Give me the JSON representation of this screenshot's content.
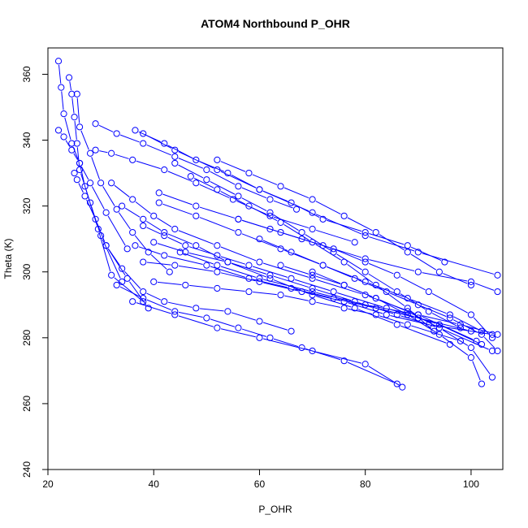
{
  "chart_data": {
    "type": "line",
    "title": "ATOM4 Northbound P_OHR",
    "xlabel": "P_OHR",
    "ylabel": "Theta (K)",
    "xlim": [
      20,
      106
    ],
    "ylim": [
      240,
      368
    ],
    "x_ticks": [
      20,
      40,
      60,
      80,
      100
    ],
    "y_ticks": [
      240,
      260,
      280,
      300,
      320,
      340,
      360
    ],
    "grid": false,
    "legend": "none",
    "marker": "open-circle",
    "color": "#0000ff",
    "series": [
      {
        "x": [
          22,
          22.5,
          23,
          24.5,
          26,
          28,
          31,
          35
        ],
        "y": [
          364,
          356,
          348,
          339,
          333,
          327,
          318,
          307
        ]
      },
      {
        "x": [
          22,
          23,
          24.5,
          26,
          27,
          29.5,
          32,
          38
        ],
        "y": [
          343,
          341,
          337,
          333,
          326,
          313,
          299,
          291
        ]
      },
      {
        "x": [
          24,
          24.5,
          25,
          25.5,
          26,
          28,
          30,
          34
        ],
        "y": [
          359,
          354,
          347,
          339,
          331,
          321,
          311,
          297
        ]
      },
      {
        "x": [
          25.5,
          26,
          28,
          30,
          33,
          36,
          39,
          43
        ],
        "y": [
          354,
          344,
          336,
          327,
          319,
          312,
          306,
          300
        ]
      },
      {
        "x": [
          25,
          25.5,
          27,
          29,
          31,
          35,
          39
        ],
        "y": [
          330,
          328,
          323,
          316,
          308,
          298,
          289
        ]
      },
      {
        "x": [
          29,
          33,
          38,
          44,
          50,
          56,
          62,
          67
        ],
        "y": [
          345,
          342,
          339,
          335,
          331,
          326,
          322,
          319
        ]
      },
      {
        "x": [
          29,
          32,
          36,
          42,
          48,
          55,
          62,
          70,
          78
        ],
        "y": [
          337,
          336,
          334,
          331,
          327,
          322,
          317,
          313,
          309
        ]
      },
      {
        "x": [
          36.5,
          42,
          48,
          54,
          60,
          66,
          72,
          80,
          88,
          95
        ],
        "y": [
          343,
          339,
          334,
          330,
          325,
          321,
          316,
          312,
          308,
          303
        ]
      },
      {
        "x": [
          38,
          44,
          52,
          60,
          70,
          80,
          90,
          105
        ],
        "y": [
          342,
          337,
          331,
          325,
          318,
          311,
          306,
          299
        ]
      },
      {
        "x": [
          41,
          48,
          56,
          64,
          72,
          80,
          90,
          100,
          105
        ],
        "y": [
          324,
          320,
          316,
          312,
          308,
          304,
          300,
          297,
          294
        ]
      },
      {
        "x": [
          36.5,
          42,
          50,
          58,
          66,
          74,
          82,
          90,
          100
        ],
        "y": [
          308,
          305,
          302,
          298,
          295,
          292,
          289,
          286,
          282
        ]
      },
      {
        "x": [
          38,
          44,
          52,
          60,
          68,
          76,
          84,
          92,
          104
        ],
        "y": [
          303,
          302,
          300,
          297,
          294,
          291,
          287,
          284,
          281
        ]
      },
      {
        "x": [
          40,
          46,
          54,
          62,
          70,
          78,
          86,
          94,
          104
        ],
        "y": [
          309,
          306,
          303,
          299,
          295,
          291,
          287,
          283,
          276
        ]
      },
      {
        "x": [
          41,
          48,
          56,
          64,
          72,
          80,
          88,
          96,
          102
        ],
        "y": [
          321,
          317,
          312,
          307,
          302,
          297,
          292,
          287,
          282
        ]
      },
      {
        "x": [
          32,
          36,
          40,
          44,
          52,
          60,
          70,
          80,
          90,
          101
        ],
        "y": [
          327,
          322,
          317,
          313,
          308,
          303,
          298,
          293,
          287,
          279
        ]
      },
      {
        "x": [
          38,
          42,
          46,
          52,
          58,
          66,
          74,
          84,
          94,
          102
        ],
        "y": [
          314,
          311,
          308,
          305,
          302,
          298,
          294,
          289,
          284,
          278
        ]
      },
      {
        "x": [
          45,
          52,
          60,
          70,
          80,
          90,
          98,
          105
        ],
        "y": [
          306,
          302,
          298,
          294,
          290,
          287,
          284,
          281
        ]
      },
      {
        "x": [
          34,
          38,
          42,
          48,
          54,
          62,
          70,
          78,
          86,
          96
        ],
        "y": [
          320,
          316,
          312,
          308,
          303,
          298,
          293,
          289,
          284,
          278
        ]
      },
      {
        "x": [
          40,
          46,
          52,
          58,
          64,
          70,
          76,
          82,
          88,
          98
        ],
        "y": [
          297,
          296,
          295,
          294,
          293,
          291,
          289,
          287,
          284,
          279
        ]
      },
      {
        "x": [
          31,
          34,
          38,
          42,
          48,
          54,
          60,
          66
        ],
        "y": [
          308,
          301,
          294,
          291,
          289,
          288,
          285,
          282
        ]
      },
      {
        "x": [
          33,
          38,
          44,
          50,
          56,
          62,
          68,
          76,
          86
        ],
        "y": [
          296,
          292,
          288,
          286,
          283,
          280,
          277,
          273,
          266
        ]
      },
      {
        "x": [
          36,
          44,
          52,
          60,
          70,
          80,
          87
        ],
        "y": [
          291,
          287,
          283,
          280,
          276,
          272,
          265
        ]
      },
      {
        "x": [
          52,
          58,
          64,
          70,
          76,
          82,
          88,
          94,
          100
        ],
        "y": [
          334,
          330,
          326,
          322,
          317,
          312,
          306,
          300,
          296
        ]
      },
      {
        "x": [
          56,
          62,
          68,
          74,
          80,
          86,
          92,
          100,
          104
        ],
        "y": [
          316,
          313,
          310,
          307,
          303,
          299,
          294,
          287,
          280
        ]
      },
      {
        "x": [
          60,
          66,
          72,
          78,
          84,
          90,
          96,
          102,
          105
        ],
        "y": [
          310,
          306,
          302,
          298,
          294,
          290,
          286,
          281,
          276
        ]
      },
      {
        "x": [
          64,
          70,
          76,
          82,
          88,
          94,
          100,
          104
        ],
        "y": [
          302,
          299,
          296,
          292,
          288,
          283,
          277,
          268
        ]
      },
      {
        "x": [
          70,
          76,
          82,
          88,
          94,
          100,
          102
        ],
        "y": [
          300,
          296,
          292,
          287,
          281,
          274,
          266
        ]
      },
      {
        "x": [
          47,
          52,
          58,
          64,
          70,
          76,
          82,
          88,
          93
        ],
        "y": [
          329,
          325,
          320,
          315,
          309,
          303,
          296,
          289,
          282
        ]
      },
      {
        "x": [
          44,
          50,
          56,
          62,
          68,
          74,
          80,
          86,
          92,
          98
        ],
        "y": [
          333,
          328,
          323,
          318,
          312,
          306,
          300,
          294,
          288,
          283
        ]
      }
    ]
  }
}
